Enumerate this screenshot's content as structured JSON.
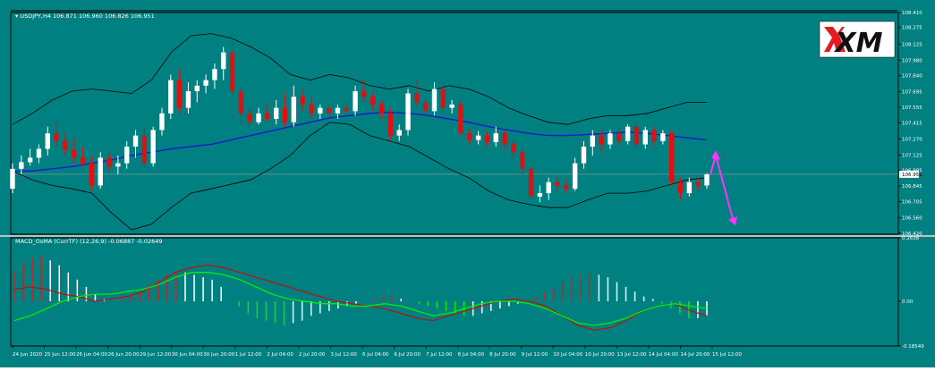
{
  "colors": {
    "background": "#008080",
    "grid": "#000000",
    "bull_candle": "#ffffff",
    "bear_candle": "#dd1111",
    "bollinger": "#000000",
    "moving_average": "#1a1acc",
    "macd_line": "#b01818",
    "signal_line": "#00ee00",
    "hist_up": "#ffffff",
    "hist_down": "#00ee00",
    "hist_up_red": "#cc2222",
    "arrow": "#ff33ff"
  },
  "chart_data": [
    {
      "type": "candlestick",
      "symbol_info": "▾ USDJPY,H4  106.871 106.960 106.826 106.951",
      "price_axis": {
        "ylim": [
          106.41,
          108.41
        ],
        "ticks": [
          "108.410",
          "108.275",
          "108.125",
          "107.980",
          "107.840",
          "107.695",
          "107.555",
          "107.415",
          "107.270",
          "107.125",
          "106.985",
          "106.845",
          "106.705",
          "106.560",
          "106.420"
        ],
        "current_price": "106.951"
      },
      "time_axis": {
        "ticks": [
          "24 Jun 2020",
          "25 Jun 12:00",
          "26 Jun 04:00",
          "26 Jun 20:00",
          "29 Jun 12:00",
          "30 Jun 04:00",
          "30 Jun 20:00",
          "1 Jul 12:00",
          "2 Jul 04:00",
          "2 Jul 20:00",
          "3 Jul 12:00",
          "6 Jul 04:00",
          "6 Jul 20:00",
          "7 Jul 12:00",
          "8 Jul 04:00",
          "8 Jul 20:00",
          "9 Jul 12:00",
          "10 Jul 04:00",
          "10 Jul 20:00",
          "13 Jul 12:00",
          "14 Jul 04:00",
          "14 Jul 20:00",
          "15 Jul 12:00"
        ]
      },
      "candles": [
        [
          106.82,
          107.05,
          106.78,
          107.0
        ],
        [
          107.0,
          107.12,
          106.95,
          107.06
        ],
        [
          107.06,
          107.18,
          107.03,
          107.1
        ],
        [
          107.1,
          107.22,
          107.05,
          107.18
        ],
        [
          107.18,
          107.38,
          107.12,
          107.32
        ],
        [
          107.32,
          107.42,
          107.2,
          107.25
        ],
        [
          107.25,
          107.33,
          107.12,
          107.17
        ],
        [
          107.17,
          107.28,
          107.05,
          107.1
        ],
        [
          107.1,
          107.2,
          107.02,
          107.05
        ],
        [
          107.05,
          107.12,
          106.8,
          106.85
        ],
        [
          106.85,
          107.15,
          106.82,
          107.1
        ],
        [
          107.1,
          107.15,
          106.98,
          107.02
        ],
        [
          107.02,
          107.12,
          106.95,
          107.05
        ],
        [
          107.05,
          107.25,
          107.0,
          107.2
        ],
        [
          107.2,
          107.35,
          107.1,
          107.3
        ],
        [
          107.3,
          107.38,
          107.0,
          107.05
        ],
        [
          107.05,
          107.38,
          107.02,
          107.35
        ],
        [
          107.35,
          107.55,
          107.3,
          107.5
        ],
        [
          107.5,
          107.85,
          107.45,
          107.8
        ],
        [
          107.8,
          107.9,
          107.5,
          107.55
        ],
        [
          107.55,
          107.78,
          107.5,
          107.7
        ],
        [
          107.7,
          107.8,
          107.6,
          107.75
        ],
        [
          107.75,
          107.85,
          107.68,
          107.8
        ],
        [
          107.8,
          107.95,
          107.72,
          107.9
        ],
        [
          107.9,
          108.1,
          107.8,
          108.05
        ],
        [
          108.05,
          108.15,
          107.65,
          107.7
        ],
        [
          107.7,
          107.75,
          107.4,
          107.5
        ],
        [
          107.5,
          107.55,
          107.38,
          107.42
        ],
        [
          107.42,
          107.55,
          107.4,
          107.5
        ],
        [
          107.5,
          107.58,
          107.42,
          107.45
        ],
        [
          107.45,
          107.62,
          107.4,
          107.55
        ],
        [
          107.55,
          107.68,
          107.38,
          107.42
        ],
        [
          107.42,
          107.75,
          107.38,
          107.65
        ],
        [
          107.65,
          107.72,
          107.52,
          107.58
        ],
        [
          107.58,
          107.65,
          107.45,
          107.5
        ],
        [
          107.5,
          107.58,
          107.45,
          107.55
        ],
        [
          107.55,
          107.6,
          107.48,
          107.5
        ],
        [
          107.5,
          107.58,
          107.45,
          107.55
        ],
        [
          107.55,
          107.6,
          107.48,
          107.52
        ],
        [
          107.52,
          107.75,
          107.48,
          107.7
        ],
        [
          107.7,
          107.8,
          107.6,
          107.65
        ],
        [
          107.65,
          107.7,
          107.52,
          107.58
        ],
        [
          107.58,
          107.62,
          107.45,
          107.5
        ],
        [
          107.5,
          107.55,
          107.25,
          107.3
        ],
        [
          107.3,
          107.4,
          107.25,
          107.35
        ],
        [
          107.35,
          107.72,
          107.3,
          107.68
        ],
        [
          107.68,
          107.8,
          107.55,
          107.6
        ],
        [
          107.6,
          107.65,
          107.48,
          107.52
        ],
        [
          107.52,
          107.78,
          107.48,
          107.72
        ],
        [
          107.72,
          107.78,
          107.52,
          107.55
        ],
        [
          107.55,
          107.62,
          107.5,
          107.58
        ],
        [
          107.58,
          107.62,
          107.3,
          107.32
        ],
        [
          107.32,
          107.36,
          107.22,
          107.26
        ],
        [
          107.26,
          107.34,
          107.22,
          107.3
        ],
        [
          107.3,
          107.34,
          107.2,
          107.24
        ],
        [
          107.24,
          107.38,
          107.2,
          107.32
        ],
        [
          107.32,
          107.36,
          107.18,
          107.22
        ],
        [
          107.22,
          107.26,
          107.1,
          107.15
        ],
        [
          107.15,
          107.2,
          106.95,
          107.0
        ],
        [
          107.0,
          107.05,
          106.72,
          106.75
        ],
        [
          106.75,
          106.85,
          106.7,
          106.78
        ],
        [
          106.78,
          106.92,
          106.72,
          106.88
        ],
        [
          106.88,
          106.92,
          106.8,
          106.85
        ],
        [
          106.85,
          106.9,
          106.78,
          106.82
        ],
        [
          106.82,
          107.1,
          106.8,
          107.05
        ],
        [
          107.05,
          107.25,
          107.0,
          107.2
        ],
        [
          107.2,
          107.35,
          107.12,
          107.3
        ],
        [
          107.3,
          107.35,
          107.15,
          107.22
        ],
        [
          107.22,
          107.35,
          107.18,
          107.32
        ],
        [
          107.32,
          107.38,
          107.2,
          107.25
        ],
        [
          107.25,
          107.4,
          107.22,
          107.38
        ],
        [
          107.38,
          107.42,
          107.18,
          107.22
        ],
        [
          107.22,
          107.38,
          107.18,
          107.35
        ],
        [
          107.35,
          107.38,
          107.2,
          107.25
        ],
        [
          107.25,
          107.35,
          107.22,
          107.32
        ],
        [
          107.32,
          107.34,
          106.85,
          106.88
        ],
        [
          106.88,
          106.92,
          106.72,
          106.78
        ],
        [
          106.78,
          106.92,
          106.75,
          106.88
        ],
        [
          106.88,
          106.92,
          106.8,
          106.85
        ],
        [
          106.85,
          106.96,
          106.82,
          106.95
        ]
      ],
      "bollinger": {
        "upper": [
          107.4,
          107.5,
          107.62,
          107.7,
          107.72,
          107.7,
          107.68,
          107.8,
          108.05,
          108.2,
          108.22,
          108.18,
          108.1,
          108.0,
          107.85,
          107.8,
          107.85,
          107.82,
          107.75,
          107.72,
          107.75,
          107.7,
          107.75,
          107.72,
          107.65,
          107.55,
          107.48,
          107.42,
          107.4,
          107.45,
          107.48,
          107.48,
          107.5,
          107.55,
          107.6,
          107.6
        ],
        "lower": [
          106.98,
          106.9,
          106.85,
          106.82,
          106.78,
          106.6,
          106.45,
          106.5,
          106.65,
          106.78,
          106.82,
          106.86,
          106.9,
          107.0,
          107.12,
          107.3,
          107.42,
          107.4,
          107.3,
          107.25,
          107.2,
          107.1,
          107.0,
          106.92,
          106.8,
          106.72,
          106.68,
          106.65,
          106.65,
          106.72,
          106.78,
          106.78,
          106.8,
          106.85,
          106.9,
          106.92
        ]
      },
      "moving_average": [
        106.98,
        106.98,
        107.0,
        107.02,
        107.05,
        107.08,
        107.12,
        107.15,
        107.18,
        107.2,
        107.22,
        107.26,
        107.3,
        107.34,
        107.38,
        107.42,
        107.46,
        107.48,
        107.5,
        107.51,
        107.5,
        107.48,
        107.45,
        107.42,
        107.38,
        107.35,
        107.32,
        107.3,
        107.3,
        107.31,
        107.32,
        107.33,
        107.32,
        107.3,
        107.28,
        107.26
      ],
      "projection_arrows": [
        "up",
        "down"
      ]
    },
    {
      "type": "bar",
      "indicator_title": "MACD_OsMA (CurrTF) (12,26,9) -0.06887 -0.02649",
      "ylim": [
        -0.18549,
        0.2638
      ],
      "ticks": [
        "0.2638",
        "0.00",
        "-0.18549"
      ],
      "histogram": [
        0.12,
        0.16,
        0.18,
        0.19,
        0.17,
        0.15,
        0.12,
        0.09,
        0.06,
        0.03,
        0.01,
        0.0,
        0.01,
        0.02,
        0.04,
        0.07,
        0.09,
        0.11,
        0.12,
        0.12,
        0.11,
        0.1,
        0.09,
        0.06,
        0.0,
        -0.02,
        -0.05,
        -0.07,
        -0.08,
        -0.09,
        -0.1,
        -0.09,
        -0.08,
        -0.06,
        -0.05,
        -0.04,
        -0.03,
        -0.02,
        -0.01,
        0.0,
        0.01,
        0.02,
        0.02,
        0.01,
        0.0,
        -0.01,
        -0.02,
        -0.03,
        -0.04,
        -0.05,
        -0.06,
        -0.06,
        -0.05,
        -0.04,
        -0.03,
        -0.02,
        -0.01,
        0.0,
        0.02,
        0.04,
        0.06,
        0.08,
        0.1,
        0.11,
        0.12,
        0.11,
        0.1,
        0.08,
        0.06,
        0.04,
        0.02,
        0.01,
        -0.01,
        -0.03,
        -0.05,
        -0.07,
        -0.07,
        -0.06
      ],
      "hist_colors": [
        "up-red",
        "up-red",
        "up-red",
        "up-red",
        "up",
        "up",
        "up",
        "up",
        "up",
        "up",
        "up",
        "up",
        "up-red",
        "up-red",
        "up-red",
        "up-red",
        "up-red",
        "up-red",
        "up-red",
        "up",
        "up",
        "up",
        "up",
        "up",
        "down",
        "down",
        "down",
        "down",
        "down",
        "down",
        "down",
        "up",
        "up",
        "up",
        "up",
        "up",
        "up",
        "up",
        "up",
        "up",
        "up-red",
        "up-red",
        "up-red",
        "up",
        "up",
        "down",
        "down",
        "down",
        "down",
        "down",
        "down",
        "up",
        "up",
        "up",
        "up",
        "up",
        "up",
        "up",
        "up-red",
        "up-red",
        "up-red",
        "up-red",
        "up-red",
        "up-red",
        "up-red",
        "up",
        "up",
        "up",
        "up",
        "up",
        "up",
        "up",
        "down",
        "down",
        "down",
        "down",
        "up",
        "up"
      ],
      "macd_line": [
        0.05,
        0.06,
        0.05,
        0.03,
        0.02,
        0.0,
        0.01,
        0.02,
        0.04,
        0.08,
        0.12,
        0.14,
        0.15,
        0.14,
        0.12,
        0.1,
        0.08,
        0.06,
        0.04,
        0.02,
        0.0,
        -0.01,
        -0.02,
        -0.03,
        -0.05,
        -0.07,
        -0.08,
        -0.06,
        -0.04,
        -0.02,
        0.0,
        0.01,
        0.0,
        -0.02,
        -0.06,
        -0.1,
        -0.12,
        -0.11,
        -0.08,
        -0.04,
        -0.02,
        -0.01,
        -0.04,
        -0.06
      ],
      "signal_line": [
        -0.08,
        -0.06,
        -0.03,
        0.0,
        0.02,
        0.03,
        0.03,
        0.04,
        0.05,
        0.07,
        0.1,
        0.12,
        0.12,
        0.11,
        0.09,
        0.06,
        0.03,
        0.01,
        0.0,
        -0.01,
        -0.01,
        -0.02,
        -0.02,
        -0.01,
        -0.02,
        -0.04,
        -0.06,
        -0.05,
        -0.03,
        -0.01,
        0.0,
        0.0,
        -0.01,
        -0.03,
        -0.06,
        -0.09,
        -0.1,
        -0.09,
        -0.07,
        -0.04,
        -0.02,
        -0.01,
        -0.02,
        -0.03
      ]
    }
  ],
  "logo": "XM"
}
